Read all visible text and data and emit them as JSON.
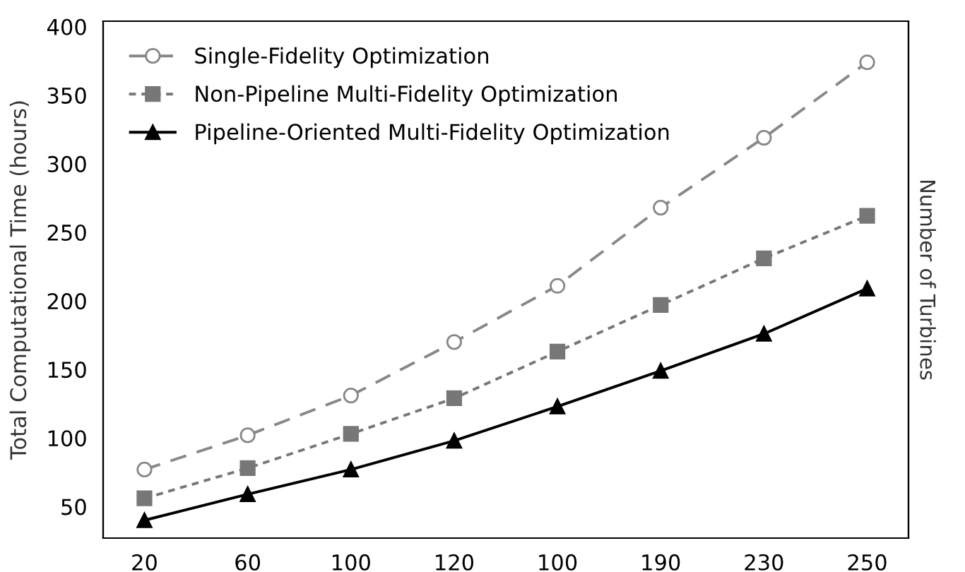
{
  "chart_data": {
    "type": "line",
    "xlabel": null,
    "ylabel": "Total Computational Time (hours)",
    "y2label": "Number of Turbines",
    "categories": [
      "20",
      "60",
      "100",
      "120",
      "100",
      "190",
      "230",
      "250"
    ],
    "series": [
      {
        "name": "Single-Fidelity Optimization",
        "color": "#888888",
        "marker": "circle",
        "line_style": "dashed",
        "values": [
          77,
          102,
          131,
          170,
          211,
          268,
          319,
          374
        ]
      },
      {
        "name": "Non-Pipeline Multi-Fidelity Optimization",
        "color": "#777777",
        "marker": "square",
        "line_style": "dotted",
        "values": [
          56,
          78,
          103,
          129,
          163,
          197,
          231,
          262
        ]
      },
      {
        "name": "Pipeline-Oriented Multi-Fidelity Optimization",
        "color": "#000000",
        "marker": "triangle",
        "line_style": "solid",
        "values": [
          40,
          59,
          77,
          98,
          123,
          149,
          176,
          209
        ]
      }
    ],
    "ylim": [
      27,
      404
    ],
    "yticks": [
      50,
      100,
      150,
      200,
      250,
      300,
      350,
      400
    ],
    "grid": false,
    "legend": "top left"
  }
}
